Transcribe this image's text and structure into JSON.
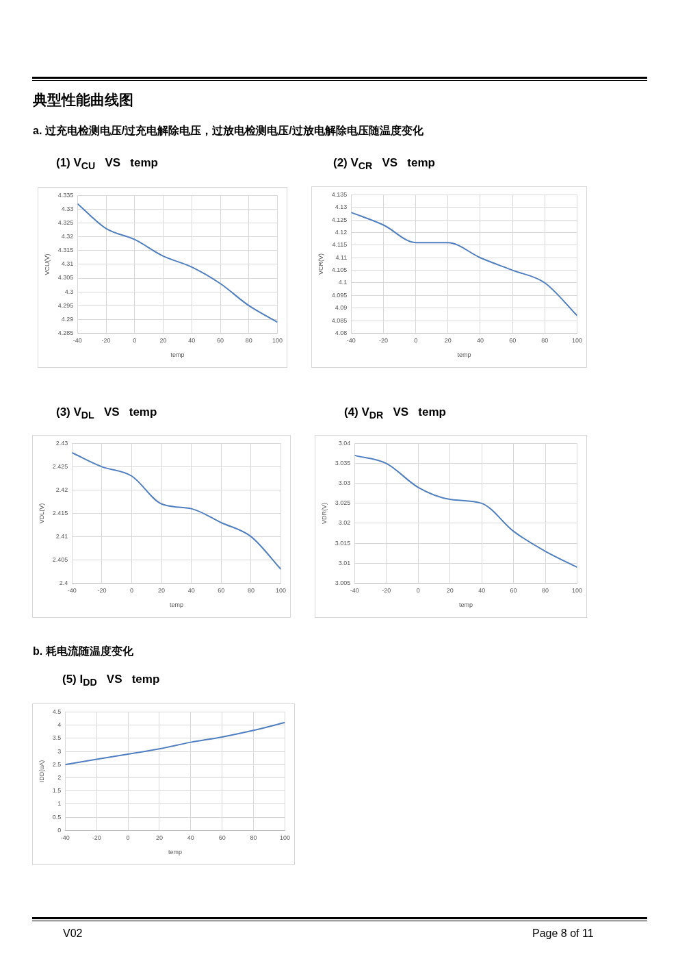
{
  "chart_data": [
    {
      "type": "line",
      "title": "(1) V$_{CU}$   VS   temp",
      "xlabel": "temp",
      "ylabel": "VCU(V)",
      "annotations": [
        "典型性能曲线图",
        "a. 过充电检测电压/过充电解除电压，过放电检测电压/过放电解除电压随温度变化"
      ],
      "x": [
        -40,
        -20,
        0,
        20,
        40,
        60,
        80,
        100
      ],
      "series": [
        {
          "color": "#4f7fc0",
          "values": [
            4.332,
            4.323,
            4.319,
            4.313,
            4.309,
            4.303,
            4.295,
            4.289
          ]
        }
      ],
      "xlim": [
        -40,
        100
      ],
      "xticks": [
        -40,
        -20,
        0,
        20,
        40,
        60,
        80,
        100
      ],
      "ylim": [
        4.285,
        4.335
      ],
      "yticks": [
        4.285,
        4.29,
        4.295,
        4.3,
        4.305,
        4.31,
        4.315,
        4.32,
        4.325,
        4.33,
        4.335
      ],
      "grid": true,
      "legend": false,
      "marker": "none",
      "line_style": "solid"
    },
    {
      "type": "line",
      "title": "(2) V$_{CR}$   VS   temp",
      "xlabel": "temp",
      "ylabel": "VCR(V)",
      "x": [
        -40,
        -20,
        0,
        20,
        40,
        60,
        80,
        100
      ],
      "series": [
        {
          "color": "#4f7fc0",
          "values": [
            4.128,
            4.123,
            4.116,
            4.116,
            4.11,
            4.105,
            4.1,
            4.087
          ]
        }
      ],
      "xlim": [
        -40,
        100
      ],
      "xticks": [
        -40,
        -20,
        0,
        20,
        40,
        60,
        80,
        100
      ],
      "ylim": [
        4.08,
        4.135
      ],
      "yticks": [
        4.08,
        4.085,
        4.09,
        4.095,
        4.1,
        4.105,
        4.11,
        4.115,
        4.12,
        4.125,
        4.13,
        4.135
      ],
      "grid": true,
      "legend": false,
      "marker": "none",
      "line_style": "solid"
    },
    {
      "type": "line",
      "title": "(3) V$_{DL}$   VS   temp",
      "xlabel": "temp",
      "ylabel": "VDL(V)",
      "x": [
        -40,
        -20,
        0,
        20,
        40,
        60,
        80,
        100
      ],
      "series": [
        {
          "color": "#4f7fc0",
          "values": [
            2.428,
            2.425,
            2.423,
            2.417,
            2.416,
            2.413,
            2.41,
            2.403
          ]
        }
      ],
      "xlim": [
        -40,
        100
      ],
      "xticks": [
        -40,
        -20,
        0,
        20,
        40,
        60,
        80,
        100
      ],
      "ylim": [
        2.4,
        2.43
      ],
      "yticks": [
        2.4,
        2.405,
        2.41,
        2.415,
        2.42,
        2.425,
        2.43
      ],
      "grid": true,
      "legend": false,
      "marker": "none",
      "line_style": "solid"
    },
    {
      "type": "line",
      "title": "(4) V$_{DR}$   VS   temp",
      "xlabel": "temp",
      "ylabel": "VDR(V)",
      "x": [
        -40,
        -20,
        0,
        20,
        40,
        60,
        80,
        100
      ],
      "series": [
        {
          "color": "#4f7fc0",
          "values": [
            3.037,
            3.035,
            3.029,
            3.026,
            3.025,
            3.018,
            3.013,
            3.009
          ]
        }
      ],
      "xlim": [
        -40,
        100
      ],
      "xticks": [
        -40,
        -20,
        0,
        20,
        40,
        60,
        80,
        100
      ],
      "ylim": [
        3.005,
        3.04
      ],
      "yticks": [
        3.005,
        3.01,
        3.015,
        3.02,
        3.025,
        3.03,
        3.035,
        3.04
      ],
      "grid": true,
      "legend": false,
      "marker": "none",
      "line_style": "solid"
    },
    {
      "type": "line",
      "title": "(5) I$_{DD}$   VS   temp",
      "xlabel": "temp",
      "ylabel": "IDD(uA)",
      "annotations": [
        "b. 耗电流随温度变化",
        "V02",
        "Page 8 of 11"
      ],
      "x": [
        -40,
        -20,
        0,
        20,
        40,
        60,
        80,
        100
      ],
      "series": [
        {
          "color": "#4f7fc0",
          "values": [
            2.5,
            2.7,
            2.9,
            3.1,
            3.35,
            3.55,
            3.8,
            4.1
          ]
        }
      ],
      "xlim": [
        -40,
        100
      ],
      "xticks": [
        -40,
        -20,
        0,
        20,
        40,
        60,
        80,
        100
      ],
      "ylim": [
        0,
        4.5
      ],
      "yticks": [
        0,
        0.5,
        1,
        1.5,
        2,
        2.5,
        3,
        3.5,
        4,
        4.5
      ],
      "grid": true,
      "legend": false,
      "marker": "none",
      "line_style": "solid"
    }
  ]
}
